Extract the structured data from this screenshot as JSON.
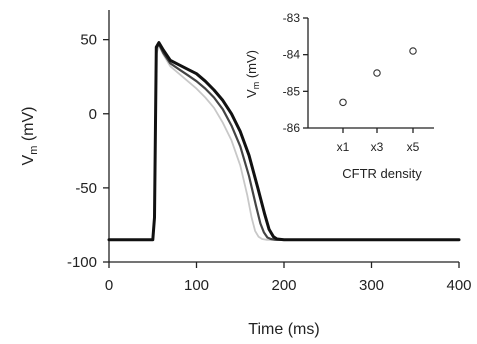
{
  "chart_data": [
    {
      "type": "line",
      "xlabel": "Time (ms)",
      "ylabel_main": "V",
      "ylabel_sub": "m",
      "ylabel_unit": " (mV)",
      "xlim": [
        0,
        400
      ],
      "ylim": [
        -100,
        70
      ],
      "xticks": [
        0,
        100,
        200,
        300,
        400
      ],
      "yticks": [
        -100,
        -50,
        0,
        50
      ],
      "series": [
        {
          "color": "#c8c8c8",
          "x": [
            0,
            50,
            52,
            54,
            57,
            62,
            70,
            80,
            90,
            100,
            110,
            120,
            130,
            140,
            150,
            158,
            163,
            167,
            171,
            175,
            180,
            190,
            200,
            250,
            300,
            400
          ],
          "y": [
            -85,
            -85,
            -70,
            40,
            46,
            40,
            32,
            27,
            22,
            17,
            11,
            4,
            -6,
            -18,
            -35,
            -55,
            -70,
            -79,
            -83,
            -84.5,
            -85,
            -85,
            -85,
            -85,
            -85,
            -85
          ]
        },
        {
          "color": "#444444",
          "x": [
            0,
            50,
            52,
            54,
            57,
            62,
            70,
            80,
            90,
            100,
            110,
            120,
            130,
            140,
            150,
            160,
            168,
            173,
            177,
            181,
            185,
            190,
            200,
            250,
            300,
            400
          ],
          "y": [
            -85,
            -85,
            -70,
            44,
            47,
            41,
            34,
            30,
            26,
            22,
            17,
            11,
            3,
            -8,
            -22,
            -42,
            -62,
            -74,
            -80,
            -83.5,
            -84.5,
            -85,
            -85,
            -85,
            -85,
            -85
          ]
        },
        {
          "color": "#111111",
          "x": [
            0,
            50,
            52,
            54,
            57,
            62,
            70,
            80,
            90,
            100,
            110,
            120,
            130,
            140,
            150,
            160,
            170,
            178,
            183,
            188,
            192,
            200,
            250,
            300,
            400
          ],
          "y": [
            -85,
            -85,
            -70,
            45,
            48,
            43,
            36,
            33,
            30,
            27,
            22,
            16,
            9,
            0,
            -12,
            -28,
            -50,
            -68,
            -78,
            -83,
            -84.5,
            -85,
            -85,
            -85,
            -85
          ]
        }
      ]
    },
    {
      "type": "scatter",
      "xlabel": "CFTR density",
      "ylabel_main": "V",
      "ylabel_sub": "m",
      "ylabel_unit": " (mV)",
      "categories": [
        "x1",
        "x3",
        "x5"
      ],
      "ylim": [
        -86,
        -83
      ],
      "yticks": [
        -86,
        -85,
        -84,
        -83
      ],
      "values": [
        -85.3,
        -84.5,
        -83.9
      ]
    }
  ]
}
